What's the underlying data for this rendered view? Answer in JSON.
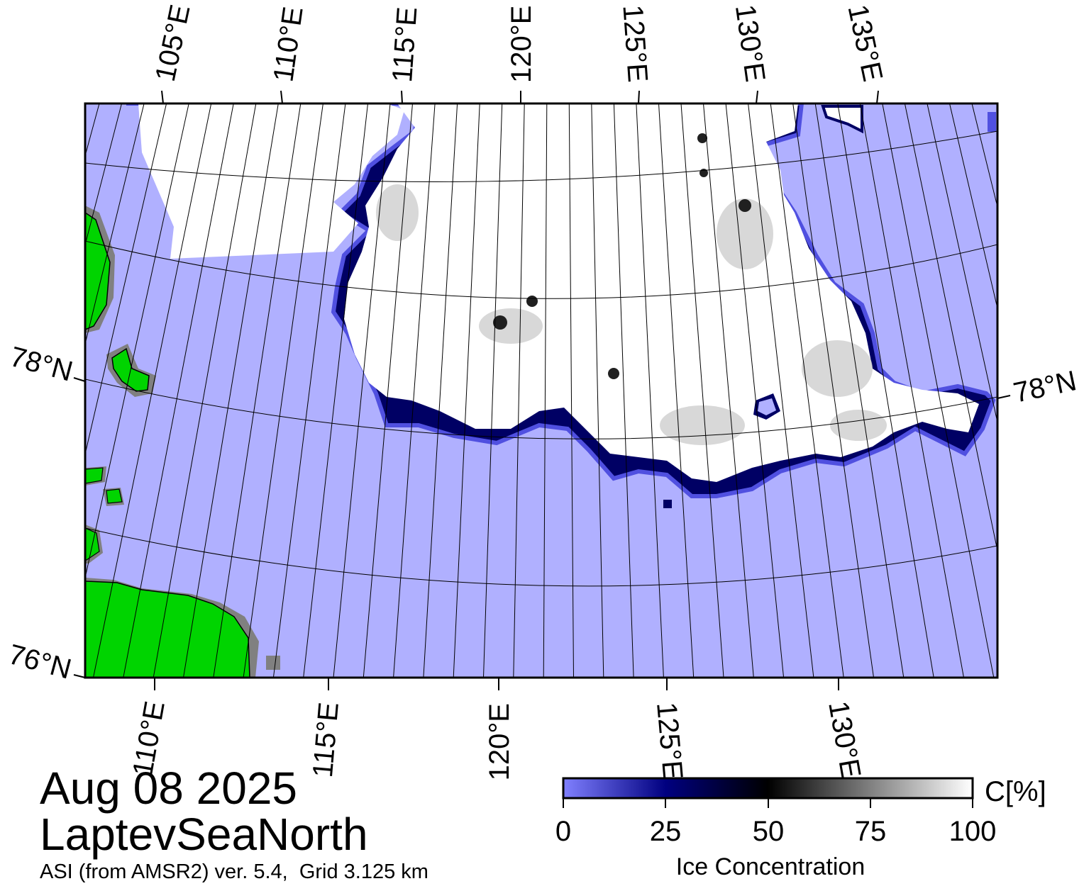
{
  "map": {
    "date": "Aug 08 2025",
    "region": "LaptevSeaNorth",
    "source": "ASI (from AMSR2) ver. 5.4,  Grid 3.125 km",
    "top_longitude_labels": [
      "105°E",
      "110°E",
      "115°E",
      "120°E",
      "125°E",
      "130°E",
      "135°E"
    ],
    "bottom_longitude_labels": [
      "110°E",
      "115°E",
      "120°E",
      "125°E",
      "130°E"
    ],
    "left_latitude_labels": [
      "78°N",
      "76°N"
    ],
    "right_latitude_labels": [
      "78°N"
    ],
    "colors": {
      "open_water": "#b0b0ff",
      "land": "#00d400",
      "land_shadow": "#808080",
      "ice_full": "#ffffff",
      "ice_edge": "#000064"
    }
  },
  "colorbar": {
    "unit_label": "C[%]",
    "title": "Ice Concentration",
    "ticks": [
      "0",
      "25",
      "50",
      "75",
      "100"
    ],
    "range": [
      0,
      100
    ],
    "gradient_stops": [
      "#8080ff",
      "#000080",
      "#000000",
      "#808080",
      "#ffffff"
    ]
  }
}
